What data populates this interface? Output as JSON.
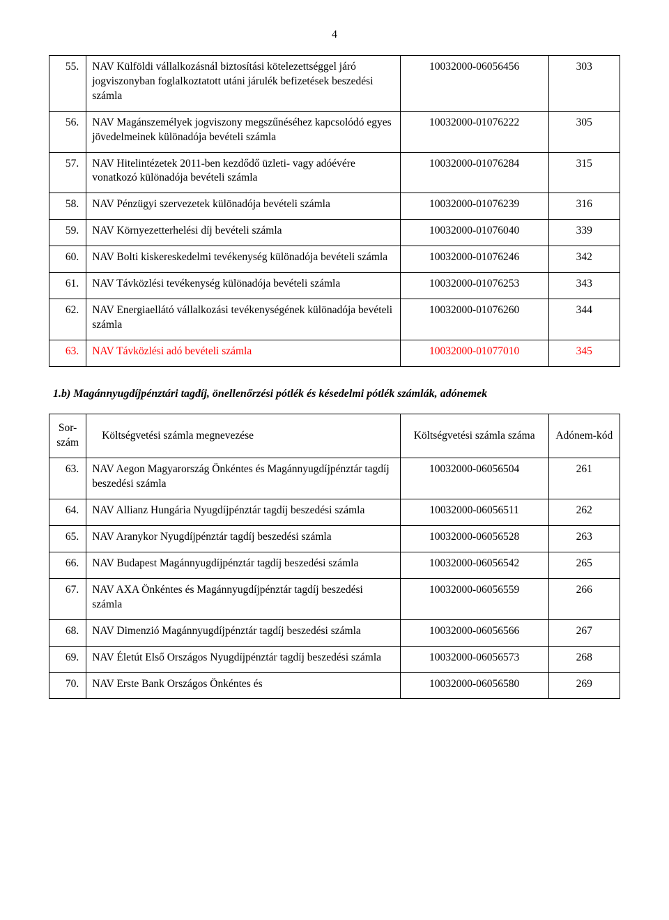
{
  "page_number": "4",
  "table1": {
    "rows": [
      {
        "num": "55.",
        "name": "NAV Külföldi vállalkozásnál biztosítási kötelezettséggel járó jogviszonyban foglalkoztatott utáni járulék befizetések beszedési számla",
        "acct": "10032000-06056456",
        "code": "303",
        "red": false
      },
      {
        "num": "56.",
        "name": "NAV Magánszemélyek jogviszony megszűnéséhez kapcsolódó egyes jövedelmeinek különadója bevételi számla",
        "acct": "10032000-01076222",
        "code": "305",
        "red": false
      },
      {
        "num": "57.",
        "name": "NAV Hitelintézetek 2011-ben kezdődő üzleti- vagy adóévére vonatkozó különadója bevételi számla",
        "acct": "10032000-01076284",
        "code": "315",
        "red": false
      },
      {
        "num": "58.",
        "name": "NAV Pénzügyi szervezetek különadója bevételi számla",
        "acct": "10032000-01076239",
        "code": "316",
        "red": false
      },
      {
        "num": "59.",
        "name": "NAV Környezetterhelési díj bevételi számla",
        "acct": "10032000-01076040",
        "code": "339",
        "red": false
      },
      {
        "num": "60.",
        "name": "NAV Bolti kiskereskedelmi tevékenység különadója bevételi számla",
        "acct": "10032000-01076246",
        "code": "342",
        "red": false
      },
      {
        "num": "61.",
        "name": "NAV Távközlési tevékenység különadója bevételi számla",
        "acct": "10032000-01076253",
        "code": "343",
        "red": false
      },
      {
        "num": "62.",
        "name": "NAV Energiaellátó vállalkozási tevékenységének különadója bevételi számla",
        "acct": "10032000-01076260",
        "code": "344",
        "red": false
      },
      {
        "num": "63.",
        "name": "NAV Távközlési adó bevételi számla",
        "acct": "10032000-01077010",
        "code": "345",
        "red": true
      }
    ]
  },
  "section_heading": "1.b) Magánnyugdíjpénztári tagdíj, önellenőrzési pótlék és késedelmi pótlék számlák, adónemek",
  "table2": {
    "header": {
      "num": "Sor-szám",
      "name": "Költségvetési számla megnevezése",
      "acct": "Költségvetési számla száma",
      "code": "Adónem-kód"
    },
    "rows": [
      {
        "num": "63.",
        "name": "NAV Aegon Magyarország Önkéntes és Magánnyugdíjpénztár tagdíj beszedési számla",
        "acct": "10032000-06056504",
        "code": "261"
      },
      {
        "num": "64.",
        "name": "NAV Allianz Hungária Nyugdíjpénztár tagdíj beszedési számla",
        "acct": "10032000-06056511",
        "code": "262"
      },
      {
        "num": "65.",
        "name": "NAV Aranykor Nyugdíjpénztár tagdíj beszedési számla",
        "acct": "10032000-06056528",
        "code": "263"
      },
      {
        "num": "66.",
        "name": "NAV Budapest Magánnyugdíjpénztár tagdíj beszedési számla",
        "acct": "10032000-06056542",
        "code": "265"
      },
      {
        "num": "67.",
        "name": "NAV AXA Önkéntes és Magánnyugdíjpénztár tagdíj beszedési számla",
        "acct": "10032000-06056559",
        "code": "266"
      },
      {
        "num": "68.",
        "name": "NAV Dimenzió Magánnyugdíjpénztár tagdíj beszedési számla",
        "acct": "10032000-06056566",
        "code": "267"
      },
      {
        "num": "69.",
        "name": "NAV Életút Első Országos Nyugdíjpénztár tagdíj beszedési számla",
        "acct": "10032000-06056573",
        "code": "268"
      },
      {
        "num": "70.",
        "name": "NAV Erste Bank Országos Önkéntes és",
        "acct": "10032000-06056580",
        "code": "269"
      }
    ]
  }
}
